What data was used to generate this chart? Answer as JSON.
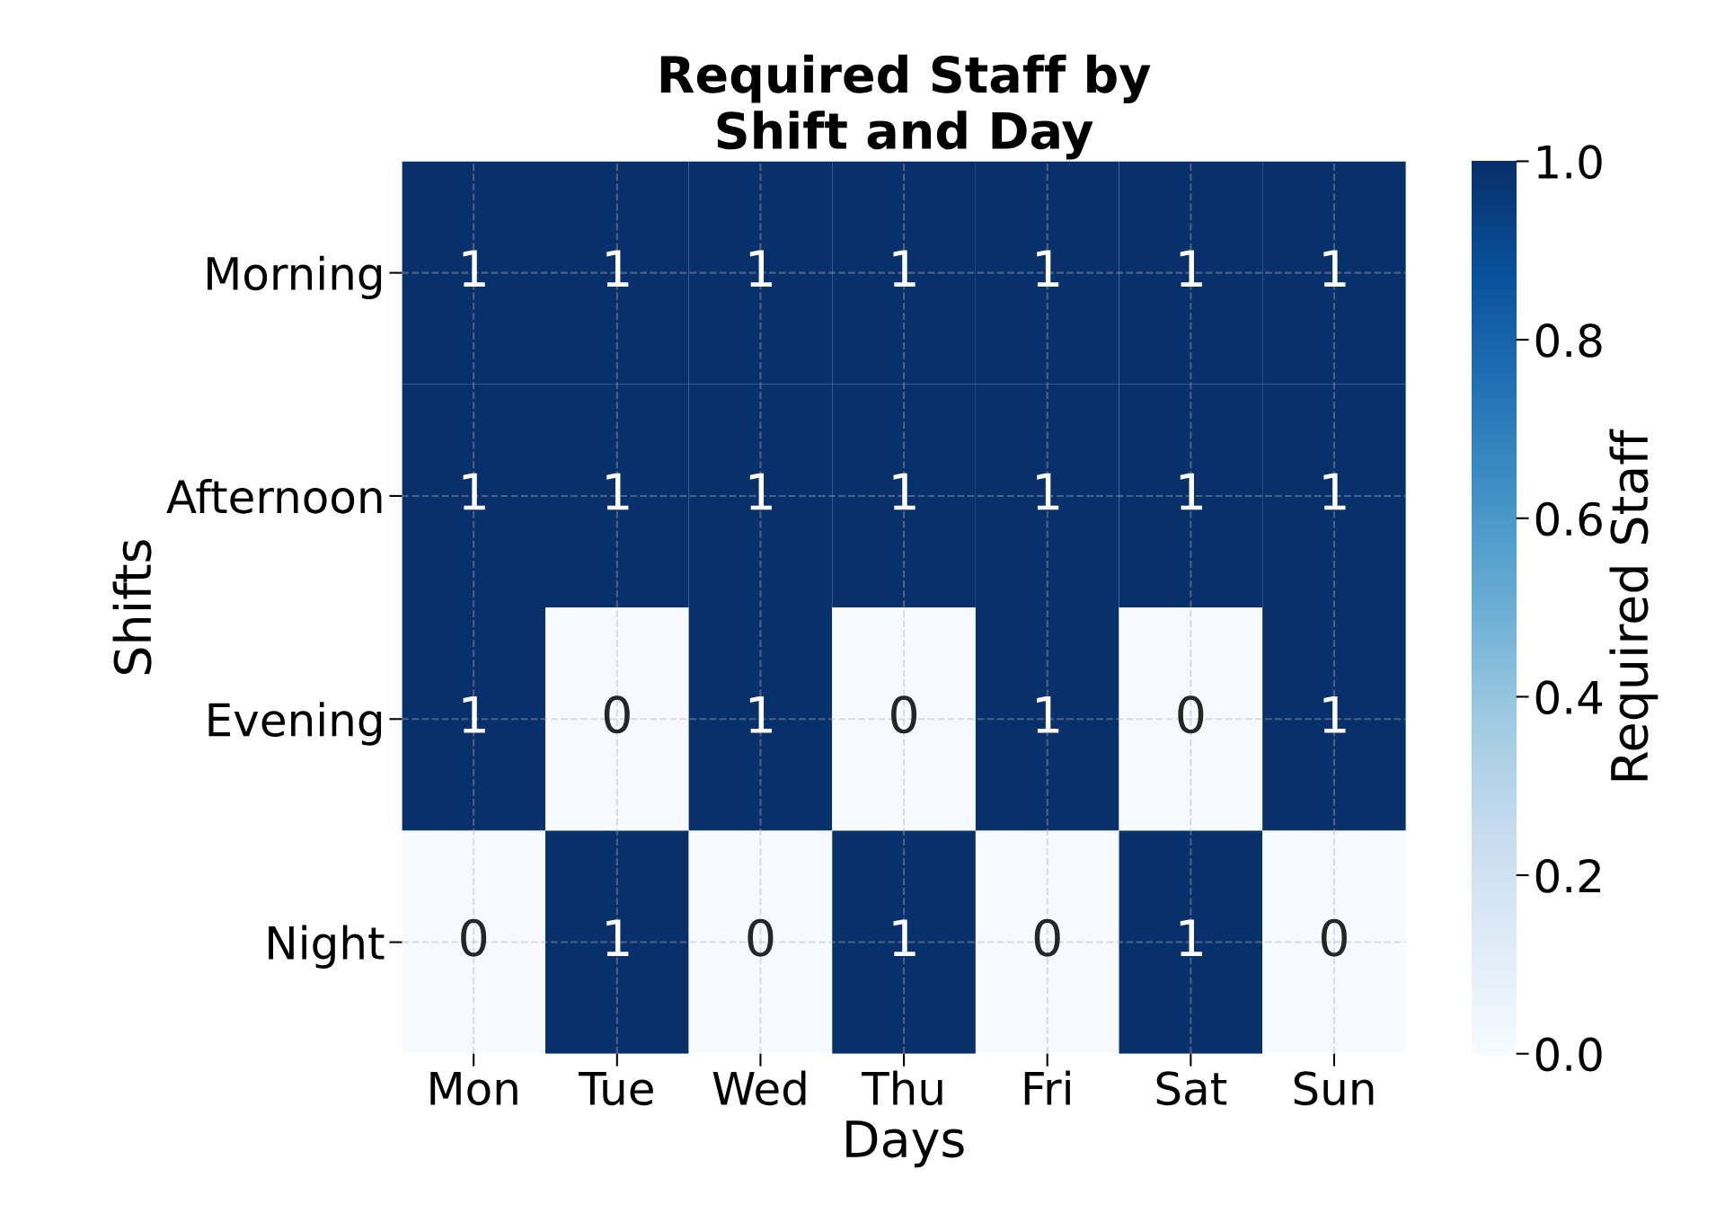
{
  "chart_data": {
    "type": "heatmap",
    "title": "Required Staff by\nShift and Day",
    "xlabel": "Days",
    "ylabel": "Shifts",
    "clabel": "Required Staff",
    "categories": [
      "Mon",
      "Tue",
      "Wed",
      "Thu",
      "Fri",
      "Sat",
      "Sun"
    ],
    "y_categories": [
      "Morning",
      "Afternoon",
      "Evening",
      "Night"
    ],
    "cells": [
      [
        1,
        1,
        1,
        1,
        1,
        1,
        1
      ],
      [
        1,
        1,
        1,
        1,
        1,
        1,
        1
      ],
      [
        1,
        0,
        1,
        0,
        1,
        0,
        1
      ],
      [
        0,
        1,
        0,
        1,
        0,
        1,
        0
      ]
    ],
    "clim": [
      0,
      1
    ],
    "cticks": [
      {
        "value": 0,
        "label": "0.0"
      },
      {
        "value": 0.2,
        "label": "0.2"
      },
      {
        "value": 0.4,
        "label": "0.4"
      },
      {
        "value": 0.6,
        "label": "0.6"
      },
      {
        "value": 0.8,
        "label": "0.8"
      },
      {
        "value": 1,
        "label": "1.0"
      }
    ],
    "data_labels": true,
    "grid": true
  }
}
